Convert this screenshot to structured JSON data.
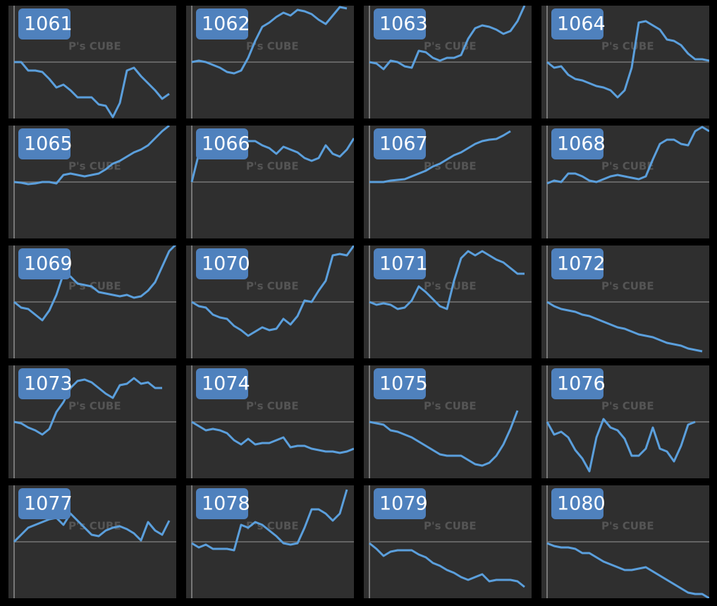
{
  "watermark": "P's CUBE",
  "chart_data": [
    {
      "type": "line",
      "title": "1061",
      "color": "#5b9fdc",
      "ylim": [
        -80,
        80
      ],
      "zero_line": true,
      "values": [
        0,
        0,
        -12,
        -12,
        -14,
        -24,
        -36,
        -32,
        -40,
        -50,
        -50,
        -50,
        -60,
        -62,
        -78,
        -58,
        -12,
        -8,
        -20,
        -30,
        -40,
        -52,
        -45
      ]
    },
    {
      "type": "line",
      "title": "1062",
      "color": "#5b9fdc",
      "ylim": [
        -80,
        80
      ],
      "zero_line": true,
      "values": [
        0,
        2,
        0,
        -4,
        -8,
        -14,
        -16,
        -12,
        6,
        30,
        50,
        56,
        64,
        70,
        66,
        74,
        72,
        68,
        60,
        54,
        66,
        78,
        76
      ]
    },
    {
      "type": "line",
      "title": "1063",
      "color": "#5b9fdc",
      "ylim": [
        -80,
        80
      ],
      "zero_line": true,
      "values": [
        0,
        -2,
        -10,
        2,
        0,
        -6,
        -8,
        16,
        14,
        6,
        2,
        6,
        6,
        10,
        33,
        48,
        52,
        50,
        46,
        40,
        44,
        58,
        80
      ]
    },
    {
      "type": "line",
      "title": "1064",
      "color": "#5b9fdc",
      "ylim": [
        -80,
        80
      ],
      "zero_line": true,
      "values": [
        0,
        -8,
        -6,
        -18,
        -24,
        -26,
        -30,
        -34,
        -36,
        -40,
        -50,
        -40,
        -8,
        56,
        58,
        52,
        46,
        32,
        30,
        24,
        12,
        4,
        4,
        2
      ]
    },
    {
      "type": "line",
      "title": "1065",
      "color": "#5b9fdc",
      "ylim": [
        -80,
        80
      ],
      "zero_line": true,
      "values": [
        0,
        -1,
        -3,
        -2,
        0,
        0,
        -2,
        10,
        12,
        10,
        8,
        10,
        12,
        18,
        26,
        30,
        36,
        42,
        46,
        52,
        62,
        72,
        80
      ]
    },
    {
      "type": "line",
      "title": "1066",
      "color": "#5b9fdc",
      "ylim": [
        -80,
        80
      ],
      "zero_line": true,
      "values": [
        0,
        40,
        62,
        68,
        68,
        58,
        54,
        52,
        58,
        58,
        52,
        48,
        40,
        50,
        46,
        42,
        34,
        30,
        34,
        52,
        40,
        36,
        46,
        62
      ]
    },
    {
      "type": "line",
      "title": "1067",
      "color": "#5b9fdc",
      "ylim": [
        -80,
        80
      ],
      "zero_line": true,
      "values": [
        0,
        0,
        0,
        2,
        3,
        4,
        8,
        12,
        16,
        22,
        26,
        32,
        38,
        42,
        48,
        54,
        58,
        60,
        61,
        66,
        72
      ]
    },
    {
      "type": "line",
      "title": "1068",
      "color": "#5b9fdc",
      "ylim": [
        -80,
        80
      ],
      "zero_line": true,
      "values": [
        -2,
        2,
        0,
        12,
        12,
        8,
        2,
        0,
        4,
        8,
        10,
        8,
        6,
        4,
        8,
        32,
        54,
        60,
        60,
        54,
        52,
        72,
        78,
        72
      ]
    },
    {
      "type": "line",
      "title": "1069",
      "color": "#5b9fdc",
      "ylim": [
        -80,
        80
      ],
      "zero_line": true,
      "values": [
        0,
        -8,
        -10,
        -18,
        -26,
        -12,
        10,
        40,
        36,
        26,
        24,
        22,
        14,
        12,
        10,
        8,
        10,
        6,
        8,
        16,
        28,
        50,
        72,
        82
      ]
    },
    {
      "type": "line",
      "title": "1070",
      "color": "#5b9fdc",
      "ylim": [
        -80,
        80
      ],
      "zero_line": true,
      "values": [
        0,
        -6,
        -8,
        -18,
        -22,
        -24,
        -34,
        -40,
        -48,
        -42,
        -36,
        -40,
        -38,
        -24,
        -32,
        -20,
        2,
        0,
        16,
        30,
        66,
        68,
        66,
        80
      ]
    },
    {
      "type": "line",
      "title": "1071",
      "color": "#5b9fdc",
      "ylim": [
        -80,
        80
      ],
      "zero_line": true,
      "values": [
        0,
        -4,
        -2,
        -4,
        -10,
        -8,
        2,
        22,
        14,
        4,
        -6,
        -10,
        30,
        62,
        72,
        66,
        72,
        66,
        60,
        56,
        48,
        40,
        40
      ]
    },
    {
      "type": "line",
      "title": "1072",
      "color": "#5b9fdc",
      "ylim": [
        -80,
        80
      ],
      "zero_line": true,
      "values": [
        0,
        -6,
        -10,
        -12,
        -14,
        -18,
        -20,
        -24,
        -28,
        -32,
        -36,
        -38,
        -42,
        -46,
        -48,
        -50,
        -54,
        -58,
        -60,
        -62,
        -66,
        -68,
        -70
      ]
    },
    {
      "type": "line",
      "title": "1073",
      "color": "#5b9fdc",
      "ylim": [
        -80,
        80
      ],
      "zero_line": true,
      "values": [
        0,
        -2,
        -8,
        -12,
        -18,
        -10,
        14,
        28,
        48,
        58,
        60,
        56,
        48,
        40,
        34,
        52,
        54,
        62,
        54,
        56,
        48,
        48
      ]
    },
    {
      "type": "line",
      "title": "1074",
      "color": "#5b9fdc",
      "ylim": [
        -80,
        80
      ],
      "zero_line": true,
      "values": [
        0,
        -6,
        -12,
        -10,
        -12,
        -16,
        -26,
        -32,
        -24,
        -32,
        -30,
        -30,
        -26,
        -22,
        -36,
        -34,
        -34,
        -38,
        -40,
        -42,
        -42,
        -44,
        -42,
        -38
      ]
    },
    {
      "type": "line",
      "title": "1075",
      "color": "#5b9fdc",
      "ylim": [
        -80,
        80
      ],
      "zero_line": true,
      "values": [
        0,
        -2,
        -4,
        -12,
        -14,
        -18,
        -22,
        -28,
        -34,
        -40,
        -46,
        -48,
        -48,
        -48,
        -54,
        -60,
        -62,
        -58,
        -48,
        -32,
        -10,
        16
      ]
    },
    {
      "type": "line",
      "title": "1076",
      "color": "#5b9fdc",
      "ylim": [
        -80,
        80
      ],
      "zero_line": true,
      "values": [
        0,
        -18,
        -14,
        -22,
        -40,
        -52,
        -70,
        -22,
        4,
        -8,
        -12,
        -24,
        -48,
        -48,
        -38,
        -8,
        -38,
        -42,
        -56,
        -34,
        -4,
        0
      ]
    },
    {
      "type": "line",
      "title": "1077",
      "color": "#5b9fdc",
      "ylim": [
        -80,
        80
      ],
      "zero_line": true,
      "values": [
        0,
        10,
        20,
        24,
        28,
        32,
        34,
        24,
        40,
        30,
        20,
        10,
        8,
        16,
        20,
        22,
        18,
        12,
        2,
        28,
        16,
        10,
        30
      ]
    },
    {
      "type": "line",
      "title": "1078",
      "color": "#5b9fdc",
      "ylim": [
        -80,
        80
      ],
      "zero_line": true,
      "values": [
        -2,
        -8,
        -4,
        -10,
        -10,
        -10,
        -12,
        24,
        20,
        28,
        24,
        16,
        8,
        -2,
        -4,
        -2,
        20,
        46,
        46,
        40,
        30,
        40,
        74
      ]
    },
    {
      "type": "line",
      "title": "1079",
      "color": "#5b9fdc",
      "ylim": [
        -80,
        80
      ],
      "zero_line": true,
      "values": [
        -2,
        -10,
        -20,
        -14,
        -12,
        -12,
        -12,
        -18,
        -22,
        -30,
        -34,
        -40,
        -44,
        -50,
        -54,
        -50,
        -46,
        -56,
        -54,
        -54,
        -54,
        -56,
        -64
      ]
    },
    {
      "type": "line",
      "title": "1080",
      "color": "#5b9fdc",
      "ylim": [
        -80,
        80
      ],
      "zero_line": true,
      "values": [
        -2,
        -6,
        -8,
        -8,
        -10,
        -16,
        -16,
        -22,
        -28,
        -32,
        -36,
        -40,
        -40,
        -38,
        -36,
        -42,
        -48,
        -54,
        -60,
        -66,
        -72,
        -74,
        -74,
        -80
      ]
    }
  ]
}
